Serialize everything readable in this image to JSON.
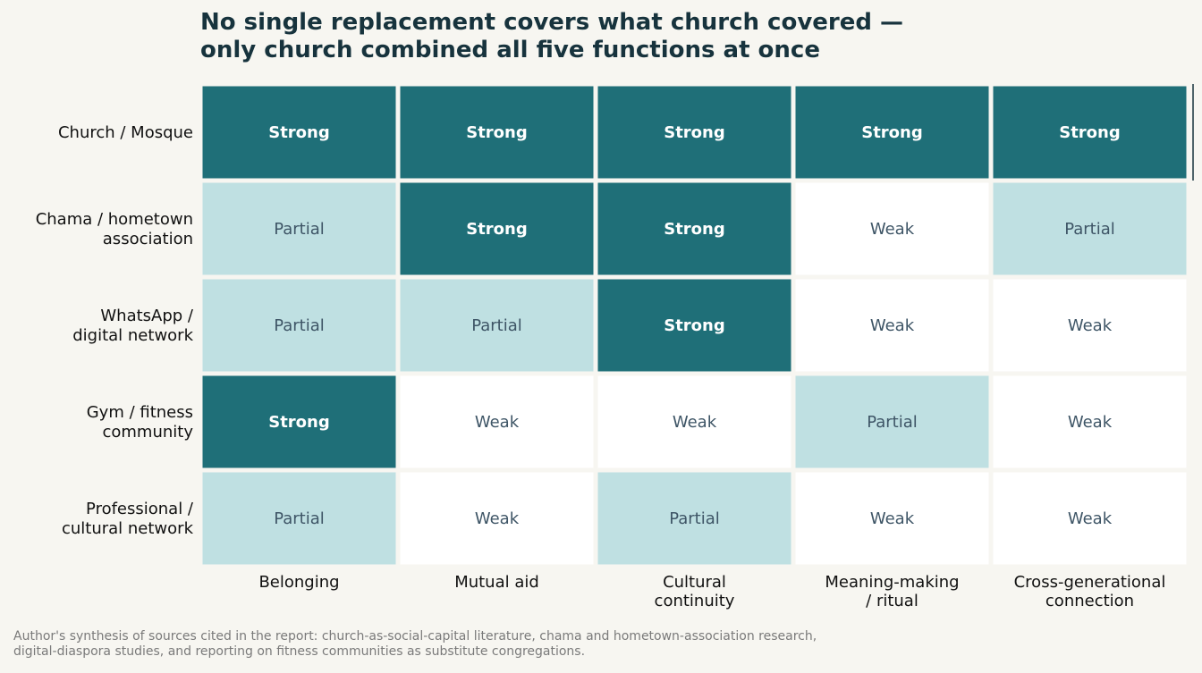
{
  "title_lines": [
    "No single replacement covers what church covered —",
    "only church combined all five functions at once"
  ],
  "colors": {
    "Strong": "#1f6f78",
    "Partial": "#bfe0e2",
    "Weak": "#ffffff",
    "text_strong": "#ffffff",
    "text_other": "#3e5566",
    "background": "#f7f6f1",
    "title": "#17333d"
  },
  "chart_data": {
    "type": "heatmap",
    "title": "No single replacement covers what church covered — only church combined all five functions at once",
    "columns": [
      [
        "Belonging"
      ],
      [
        "Mutual aid"
      ],
      [
        "Cultural",
        "continuity"
      ],
      [
        "Meaning-making",
        "/ ritual"
      ],
      [
        "Cross-generational",
        "connection"
      ]
    ],
    "rows": [
      [
        "Church / Mosque"
      ],
      [
        "Chama / hometown",
        "association"
      ],
      [
        "WhatsApp /",
        "digital network"
      ],
      [
        "Gym / fitness",
        "community"
      ],
      [
        "Professional /",
        "cultural network"
      ]
    ],
    "cells": [
      [
        "Strong",
        "Strong",
        "Strong",
        "Strong",
        "Strong"
      ],
      [
        "Partial",
        "Strong",
        "Strong",
        "Weak",
        "Partial"
      ],
      [
        "Partial",
        "Partial",
        "Strong",
        "Weak",
        "Weak"
      ],
      [
        "Strong",
        "Weak",
        "Weak",
        "Partial",
        "Weak"
      ],
      [
        "Partial",
        "Weak",
        "Partial",
        "Weak",
        "Weak"
      ]
    ]
  },
  "source_lines": [
    "Author's synthesis of sources cited in the report: church-as-social-capital literature, chama and hometown-association research,",
    "digital-diaspora studies, and reporting on fitness communities as substitute congregations."
  ]
}
